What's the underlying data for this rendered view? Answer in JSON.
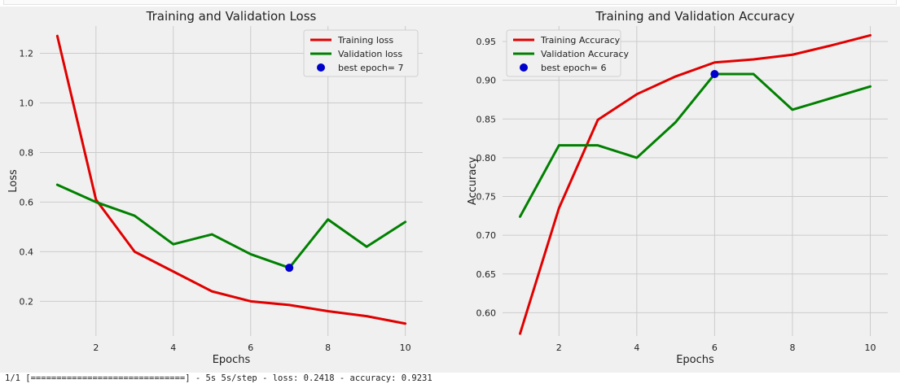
{
  "console": {
    "log_line": "1/1 [==============================] - 5s 5s/step - loss: 0.2418 - accuracy: 0.9231"
  },
  "chart_data": [
    {
      "type": "line",
      "title": "Training and Validation Loss",
      "xlabel": "Epochs",
      "ylabel": "Loss",
      "xlim": [
        0.55,
        10.45
      ],
      "ylim": [
        0.06,
        1.31
      ],
      "xticks": [
        2,
        4,
        6,
        8,
        10
      ],
      "yticks": [
        0.2,
        0.4,
        0.6,
        0.8,
        1.0,
        1.2
      ],
      "ytick_labels": [
        "0.2",
        "0.4",
        "0.6",
        "0.8",
        "1.0",
        "1.2"
      ],
      "grid": true,
      "legend_position": "top-right",
      "x": [
        1,
        2,
        3,
        4,
        5,
        6,
        7,
        8,
        9,
        10
      ],
      "series": [
        {
          "name": "Training loss",
          "color": "#e00000",
          "values": [
            1.27,
            0.61,
            0.4,
            0.32,
            0.24,
            0.2,
            0.185,
            0.16,
            0.14,
            0.11
          ]
        },
        {
          "name": "Validation loss",
          "color": "#008000",
          "values": [
            0.67,
            0.6,
            0.545,
            0.43,
            0.47,
            0.39,
            0.335,
            0.53,
            0.42,
            0.52
          ]
        }
      ],
      "marker": {
        "name": "best epoch= 7",
        "x": 7,
        "y": 0.335,
        "color": "#0000cc"
      }
    },
    {
      "type": "line",
      "title": "Training and Validation Accuracy",
      "xlabel": "Epochs",
      "ylabel": "Accuracy",
      "xlim": [
        0.55,
        10.45
      ],
      "ylim": [
        0.57,
        0.97
      ],
      "xticks": [
        2,
        4,
        6,
        8,
        10
      ],
      "yticks": [
        0.6,
        0.65,
        0.7,
        0.75,
        0.8,
        0.85,
        0.9,
        0.95
      ],
      "ytick_labels": [
        "0.60",
        "0.65",
        "0.70",
        "0.75",
        "0.80",
        "0.85",
        "0.90",
        "0.95"
      ],
      "grid": true,
      "legend_position": "top-left",
      "x": [
        1,
        2,
        3,
        4,
        5,
        6,
        7,
        8,
        9,
        10
      ],
      "series": [
        {
          "name": "Training Accuracy",
          "color": "#e00000",
          "values": [
            0.573,
            0.735,
            0.849,
            0.882,
            0.905,
            0.923,
            0.927,
            0.933,
            0.945,
            0.958
          ]
        },
        {
          "name": "Validation Accuracy",
          "color": "#008000",
          "values": [
            0.724,
            0.816,
            0.816,
            0.8,
            0.846,
            0.908,
            0.908,
            0.862,
            0.877,
            0.892
          ]
        }
      ],
      "marker": {
        "name": "best epoch= 6",
        "x": 6,
        "y": 0.908,
        "color": "#0000cc"
      }
    }
  ]
}
